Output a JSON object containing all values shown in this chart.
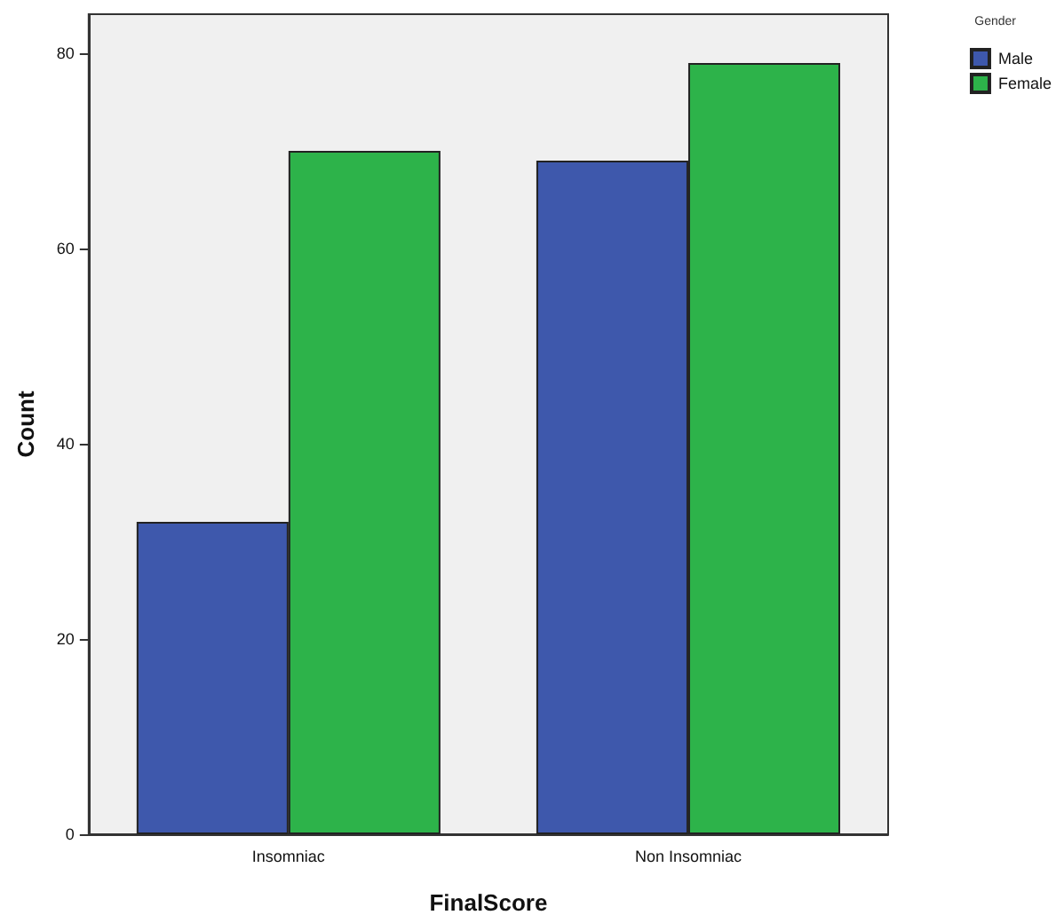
{
  "chart_data": {
    "type": "bar",
    "xlabel": "FinalScore",
    "ylabel": "Count",
    "legend_title": "Gender",
    "categories": [
      "Insomniac",
      "Non Insomniac"
    ],
    "series": [
      {
        "name": "Male",
        "color": "#3e58ac",
        "values": [
          32,
          69
        ]
      },
      {
        "name": "Female",
        "color": "#2db34a",
        "values": [
          70,
          79
        ]
      }
    ],
    "ylim": [
      0,
      84
    ],
    "yticks": [
      0,
      20,
      40,
      60,
      80
    ],
    "grid": false,
    "legend": "top right"
  }
}
